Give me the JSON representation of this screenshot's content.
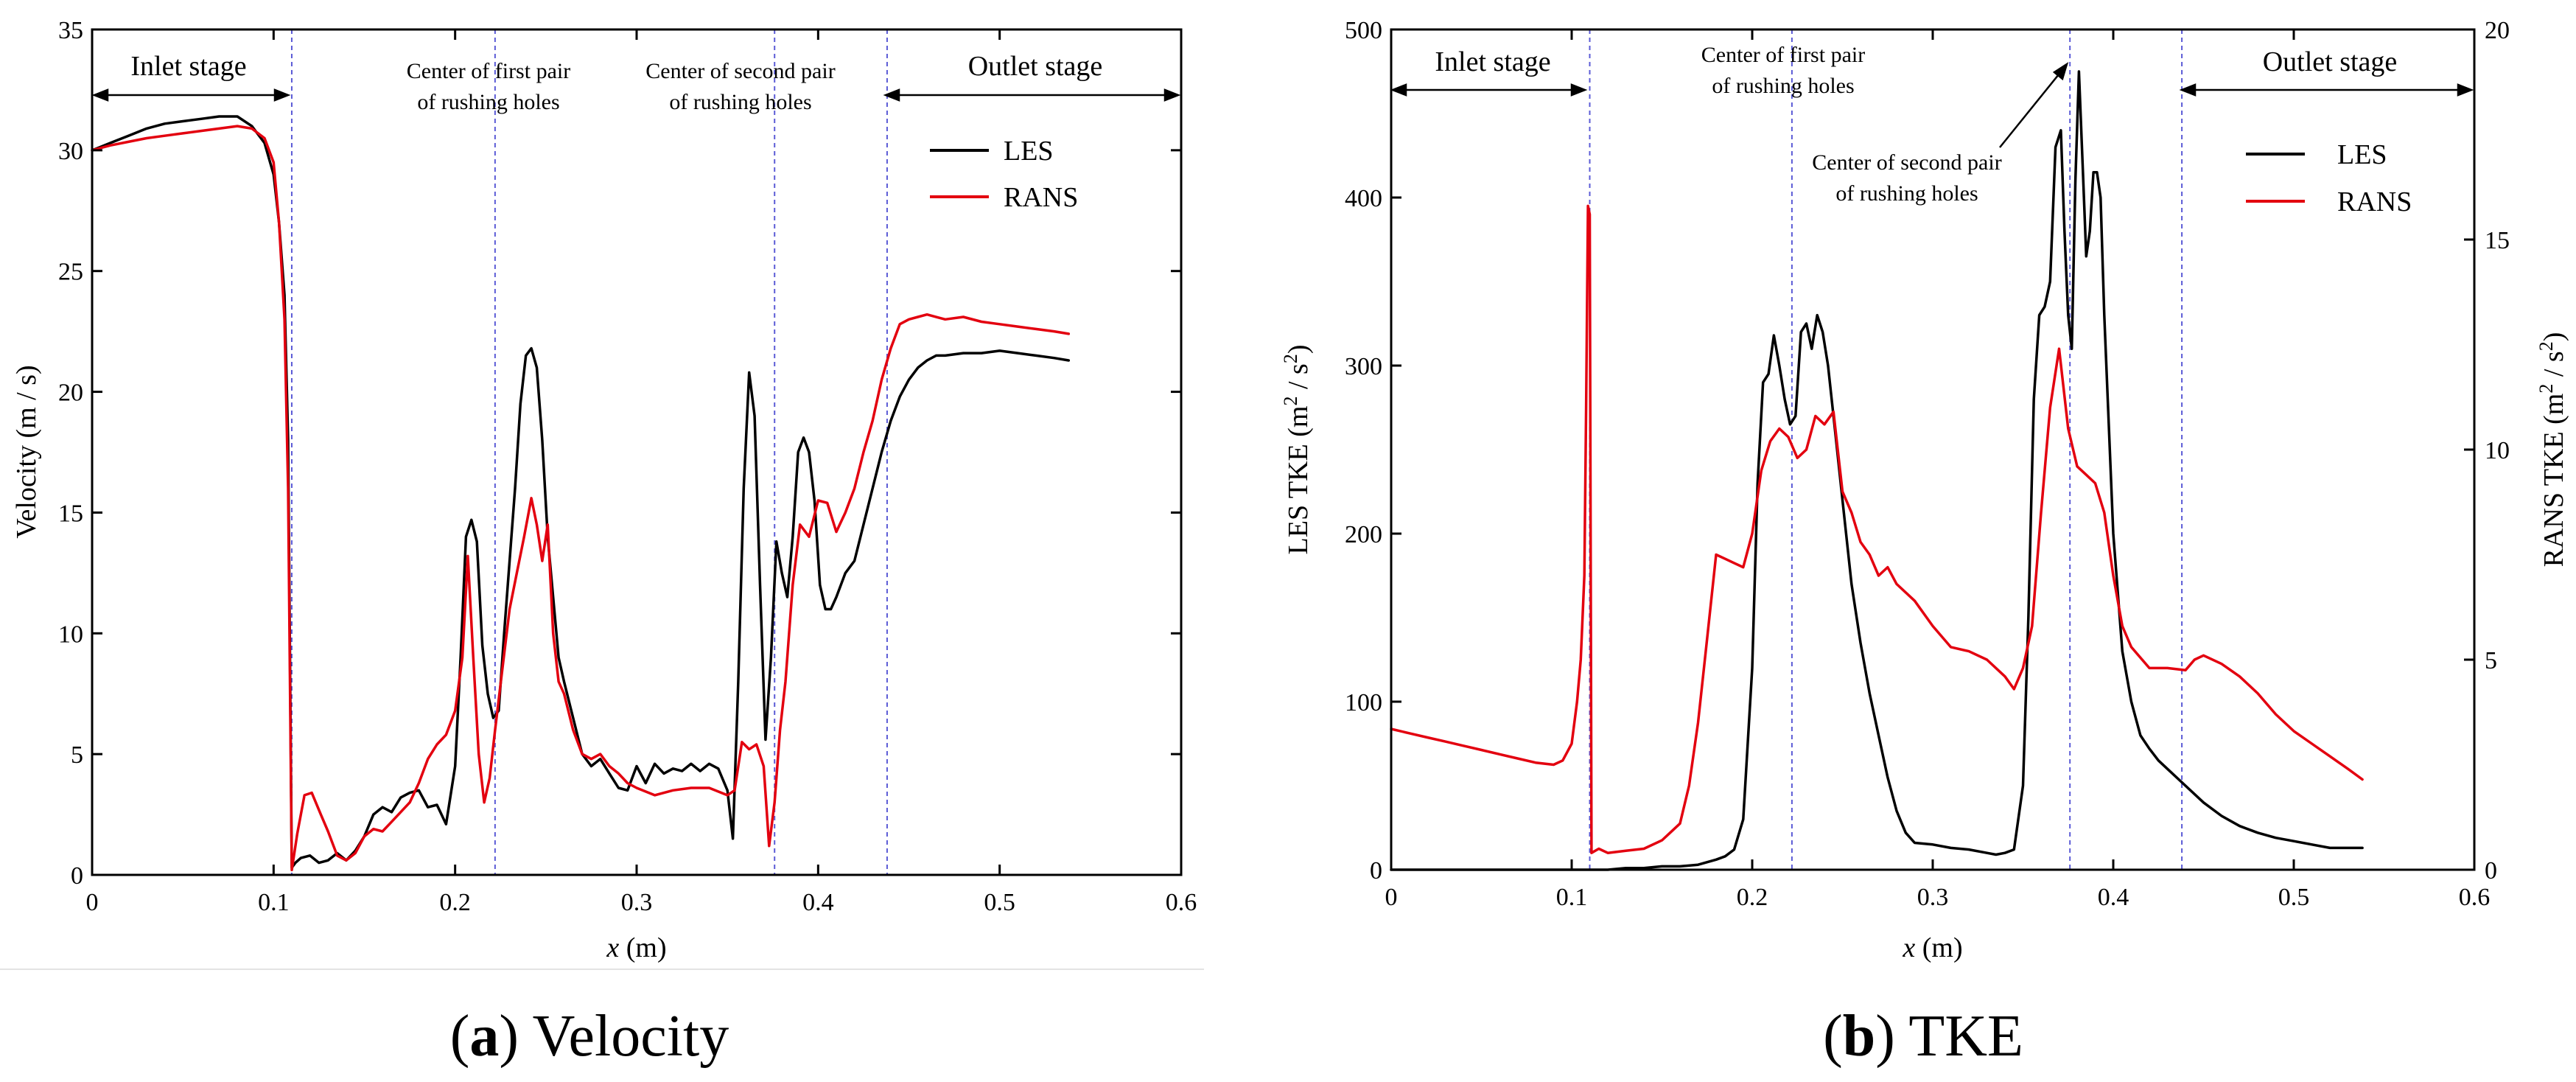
{
  "chart_data": [
    {
      "type": "line",
      "caption_letter": "a",
      "caption_text": " Velocity",
      "xlabel_var": "x",
      "xlabel_unit": " (m)",
      "ylabel": "Velocity (m / s)",
      "xlim": [
        0,
        0.6
      ],
      "ylim": [
        0,
        35
      ],
      "xticks": [
        0,
        0.1,
        0.2,
        0.3,
        0.4,
        0.5,
        0.6
      ],
      "xtick_labels": [
        "0",
        "0.1",
        "0.2",
        "0.3",
        "0.4",
        "0.5",
        "0.6"
      ],
      "yticks": [
        0,
        5,
        10,
        15,
        20,
        25,
        30,
        35
      ],
      "ytick_labels": [
        "0",
        "5",
        "10",
        "15",
        "20",
        "25",
        "30",
        "35"
      ],
      "vlines": [
        0.11,
        0.222,
        0.376,
        0.438
      ],
      "stage_left": "Inlet stage",
      "stage_right": "Outlet stage",
      "annotations": [
        {
          "lines": [
            "Center of first pair",
            "of rushing holes"
          ]
        },
        {
          "lines": [
            "Center of second pair",
            "of rushing holes"
          ]
        }
      ],
      "series": [
        {
          "name": "LES",
          "color": "#000000",
          "x": [
            0,
            0.01,
            0.02,
            0.03,
            0.04,
            0.05,
            0.06,
            0.07,
            0.08,
            0.088,
            0.095,
            0.1,
            0.103,
            0.106,
            0.108,
            0.11,
            0.112,
            0.115,
            0.12,
            0.125,
            0.13,
            0.135,
            0.14,
            0.145,
            0.15,
            0.155,
            0.16,
            0.165,
            0.17,
            0.175,
            0.18,
            0.185,
            0.19,
            0.195,
            0.2,
            0.203,
            0.206,
            0.209,
            0.212,
            0.215,
            0.218,
            0.221,
            0.224,
            0.227,
            0.23,
            0.233,
            0.236,
            0.239,
            0.242,
            0.245,
            0.248,
            0.251,
            0.254,
            0.257,
            0.26,
            0.265,
            0.27,
            0.275,
            0.28,
            0.285,
            0.29,
            0.295,
            0.3,
            0.305,
            0.31,
            0.315,
            0.32,
            0.325,
            0.33,
            0.335,
            0.34,
            0.345,
            0.35,
            0.353,
            0.356,
            0.359,
            0.362,
            0.365,
            0.368,
            0.371,
            0.374,
            0.377,
            0.38,
            0.383,
            0.386,
            0.389,
            0.392,
            0.395,
            0.398,
            0.401,
            0.404,
            0.407,
            0.41,
            0.415,
            0.42,
            0.425,
            0.43,
            0.435,
            0.44,
            0.445,
            0.45,
            0.455,
            0.46,
            0.465,
            0.47,
            0.48,
            0.49,
            0.5,
            0.51,
            0.52,
            0.53,
            0.538
          ],
          "y": [
            30,
            30.3,
            30.6,
            30.9,
            31.1,
            31.2,
            31.3,
            31.4,
            31.4,
            31.0,
            30.3,
            29,
            27,
            24,
            18,
            0.3,
            0.5,
            0.7,
            0.8,
            0.5,
            0.6,
            0.9,
            0.6,
            1.0,
            1.6,
            2.5,
            2.8,
            2.6,
            3.2,
            3.4,
            3.5,
            2.8,
            2.9,
            2.1,
            4.5,
            9.0,
            14.0,
            14.7,
            13.8,
            9.5,
            7.5,
            6.5,
            6.8,
            10.0,
            13.0,
            16.0,
            19.5,
            21.5,
            21.8,
            21.0,
            18.0,
            14.0,
            11.5,
            9.0,
            8.0,
            6.5,
            5.0,
            4.5,
            4.8,
            4.2,
            3.6,
            3.5,
            4.5,
            3.8,
            4.6,
            4.2,
            4.4,
            4.3,
            4.6,
            4.3,
            4.6,
            4.4,
            3.5,
            1.5,
            8.0,
            16.0,
            20.8,
            19.0,
            12.0,
            5.6,
            9.0,
            13.8,
            12.5,
            11.5,
            14.0,
            17.5,
            18.1,
            17.5,
            15.5,
            12.0,
            11.0,
            11.0,
            11.5,
            12.5,
            13.0,
            14.5,
            16.0,
            17.5,
            18.8,
            19.8,
            20.5,
            21.0,
            21.3,
            21.5,
            21.5,
            21.6,
            21.6,
            21.7,
            21.6,
            21.5,
            21.4,
            21.3
          ]
        },
        {
          "name": "RANS",
          "color": "#e3000f",
          "x": [
            0,
            0.01,
            0.02,
            0.03,
            0.04,
            0.05,
            0.06,
            0.07,
            0.08,
            0.088,
            0.095,
            0.1,
            0.103,
            0.106,
            0.108,
            0.11,
            0.113,
            0.117,
            0.121,
            0.126,
            0.13,
            0.135,
            0.14,
            0.145,
            0.15,
            0.155,
            0.16,
            0.165,
            0.17,
            0.175,
            0.18,
            0.185,
            0.19,
            0.195,
            0.2,
            0.204,
            0.207,
            0.21,
            0.213,
            0.216,
            0.219,
            0.222,
            0.226,
            0.23,
            0.234,
            0.238,
            0.242,
            0.245,
            0.248,
            0.251,
            0.254,
            0.257,
            0.26,
            0.265,
            0.27,
            0.275,
            0.28,
            0.285,
            0.29,
            0.295,
            0.3,
            0.31,
            0.32,
            0.33,
            0.34,
            0.35,
            0.354,
            0.358,
            0.362,
            0.366,
            0.37,
            0.373,
            0.376,
            0.379,
            0.382,
            0.386,
            0.39,
            0.395,
            0.4,
            0.405,
            0.41,
            0.415,
            0.42,
            0.425,
            0.43,
            0.435,
            0.44,
            0.445,
            0.45,
            0.455,
            0.46,
            0.47,
            0.48,
            0.49,
            0.5,
            0.51,
            0.52,
            0.53,
            0.538
          ],
          "y": [
            30,
            30.2,
            30.35,
            30.5,
            30.6,
            30.7,
            30.8,
            30.9,
            31.0,
            30.9,
            30.5,
            29.5,
            27,
            23,
            16,
            0.2,
            1.7,
            3.3,
            3.4,
            2.5,
            1.8,
            0.8,
            0.6,
            0.9,
            1.6,
            1.9,
            1.8,
            2.2,
            2.6,
            3.0,
            3.8,
            4.8,
            5.4,
            5.8,
            6.8,
            9.0,
            13.2,
            9.0,
            5.0,
            3.0,
            4.0,
            6.0,
            8.5,
            11.0,
            12.5,
            14.0,
            15.6,
            14.5,
            13.0,
            14.5,
            10.0,
            8.0,
            7.5,
            6.0,
            5.0,
            4.8,
            5.0,
            4.5,
            4.2,
            3.8,
            3.6,
            3.3,
            3.5,
            3.6,
            3.6,
            3.3,
            3.5,
            5.5,
            5.2,
            5.4,
            4.5,
            1.2,
            3.0,
            6.0,
            8.0,
            12.0,
            14.5,
            14.0,
            15.5,
            15.4,
            14.2,
            15.0,
            16.0,
            17.5,
            18.8,
            20.5,
            21.8,
            22.8,
            23.0,
            23.1,
            23.2,
            23.0,
            23.1,
            22.9,
            22.8,
            22.7,
            22.6,
            22.5,
            22.4
          ]
        }
      ]
    },
    {
      "type": "line",
      "caption_letter": "b",
      "caption_text": " TKE",
      "xlabel_var": "x",
      "xlabel_unit": " (m)",
      "ylabel_left_pre": "LES TKE (m",
      "ylabel_left_sup": "2",
      "ylabel_left_mid": " / s",
      "ylabel_left_post": ")",
      "ylabel_right_pre": "RANS TKE (m",
      "ylabel_right_sup": "2",
      "ylabel_right_mid": " / s",
      "ylabel_right_post": ")",
      "xlim": [
        0,
        0.6
      ],
      "ylim_left": [
        0,
        500
      ],
      "ylim_right": [
        0,
        20
      ],
      "xticks": [
        0,
        0.1,
        0.2,
        0.3,
        0.4,
        0.5,
        0.6
      ],
      "xtick_labels": [
        "0",
        "0.1",
        "0.2",
        "0.3",
        "0.4",
        "0.5",
        "0.6"
      ],
      "yticks_left": [
        0,
        100,
        200,
        300,
        400,
        500
      ],
      "ytick_labels_left": [
        "0",
        "100",
        "200",
        "300",
        "400",
        "500"
      ],
      "yticks_right": [
        0,
        5,
        10,
        15,
        20
      ],
      "ytick_labels_right": [
        "0",
        "5",
        "10",
        "15",
        "20"
      ],
      "vlines": [
        0.11,
        0.222,
        0.376,
        0.438
      ],
      "stage_left": "Inlet stage",
      "stage_right": "Outlet stage",
      "annotations": [
        {
          "lines": [
            "Center of first pair",
            "of rushing holes"
          ]
        },
        {
          "lines": [
            "Center of second pair",
            "of rushing holes"
          ]
        }
      ],
      "series": [
        {
          "name": "LES",
          "color": "#000000",
          "axis": "left",
          "x": [
            0,
            0.02,
            0.04,
            0.06,
            0.08,
            0.1,
            0.11,
            0.12,
            0.13,
            0.14,
            0.15,
            0.16,
            0.17,
            0.18,
            0.185,
            0.19,
            0.195,
            0.2,
            0.203,
            0.206,
            0.209,
            0.212,
            0.215,
            0.218,
            0.221,
            0.224,
            0.227,
            0.23,
            0.233,
            0.236,
            0.239,
            0.242,
            0.245,
            0.25,
            0.255,
            0.26,
            0.265,
            0.27,
            0.275,
            0.28,
            0.285,
            0.29,
            0.3,
            0.31,
            0.32,
            0.33,
            0.335,
            0.34,
            0.345,
            0.35,
            0.353,
            0.356,
            0.359,
            0.362,
            0.365,
            0.368,
            0.371,
            0.373,
            0.375,
            0.377,
            0.379,
            0.381,
            0.383,
            0.385,
            0.387,
            0.389,
            0.391,
            0.393,
            0.395,
            0.4,
            0.405,
            0.41,
            0.415,
            0.42,
            0.425,
            0.43,
            0.44,
            0.45,
            0.46,
            0.47,
            0.48,
            0.49,
            0.5,
            0.51,
            0.52,
            0.53,
            0.538
          ],
          "y": [
            0,
            0,
            0,
            0,
            0,
            0,
            0,
            0,
            1,
            1,
            2,
            2,
            3,
            6,
            8,
            12,
            30,
            120,
            230,
            290,
            295,
            318,
            300,
            280,
            265,
            270,
            320,
            325,
            310,
            330,
            320,
            300,
            270,
            220,
            170,
            135,
            105,
            80,
            55,
            35,
            22,
            16,
            15,
            13,
            12,
            10,
            9,
            10,
            12,
            50,
            150,
            280,
            330,
            335,
            350,
            430,
            440,
            380,
            330,
            310,
            410,
            475,
            420,
            365,
            380,
            415,
            415,
            400,
            330,
            200,
            130,
            100,
            80,
            72,
            65,
            60,
            50,
            40,
            32,
            26,
            22,
            19,
            17,
            15,
            13,
            13,
            13
          ]
        },
        {
          "name": "RANS",
          "color": "#e3000f",
          "axis": "right",
          "x": [
            0,
            0.01,
            0.02,
            0.03,
            0.04,
            0.05,
            0.06,
            0.07,
            0.08,
            0.09,
            0.095,
            0.1,
            0.103,
            0.105,
            0.107,
            0.108,
            0.109,
            0.11,
            0.111,
            0.115,
            0.12,
            0.13,
            0.14,
            0.15,
            0.155,
            0.16,
            0.165,
            0.17,
            0.175,
            0.18,
            0.185,
            0.19,
            0.195,
            0.2,
            0.205,
            0.21,
            0.215,
            0.22,
            0.225,
            0.23,
            0.235,
            0.24,
            0.245,
            0.25,
            0.255,
            0.26,
            0.265,
            0.27,
            0.275,
            0.28,
            0.29,
            0.3,
            0.31,
            0.32,
            0.33,
            0.34,
            0.345,
            0.35,
            0.355,
            0.36,
            0.365,
            0.37,
            0.375,
            0.38,
            0.385,
            0.39,
            0.395,
            0.4,
            0.405,
            0.41,
            0.42,
            0.43,
            0.44,
            0.445,
            0.45,
            0.46,
            0.47,
            0.48,
            0.49,
            0.5,
            0.51,
            0.52,
            0.53,
            0.538
          ],
          "y": [
            3.35,
            3.25,
            3.15,
            3.05,
            2.95,
            2.85,
            2.75,
            2.65,
            2.55,
            2.5,
            2.6,
            3.0,
            4.0,
            5.0,
            7.0,
            11.0,
            15.8,
            15.6,
            0.4,
            0.5,
            0.4,
            0.45,
            0.5,
            0.7,
            0.9,
            1.1,
            2.0,
            3.5,
            5.5,
            7.5,
            7.4,
            7.3,
            7.2,
            8.0,
            9.5,
            10.2,
            10.5,
            10.3,
            9.8,
            10.0,
            10.8,
            10.6,
            10.9,
            9.0,
            8.5,
            7.8,
            7.5,
            7.0,
            7.2,
            6.8,
            6.4,
            5.8,
            5.3,
            5.2,
            5.0,
            4.6,
            4.3,
            4.8,
            5.8,
            8.5,
            11.0,
            12.4,
            10.5,
            9.6,
            9.4,
            9.2,
            8.5,
            7.0,
            5.8,
            5.3,
            4.8,
            4.8,
            4.75,
            5.0,
            5.1,
            4.9,
            4.6,
            4.2,
            3.7,
            3.3,
            3.0,
            2.7,
            2.4,
            2.15
          ]
        }
      ]
    }
  ]
}
